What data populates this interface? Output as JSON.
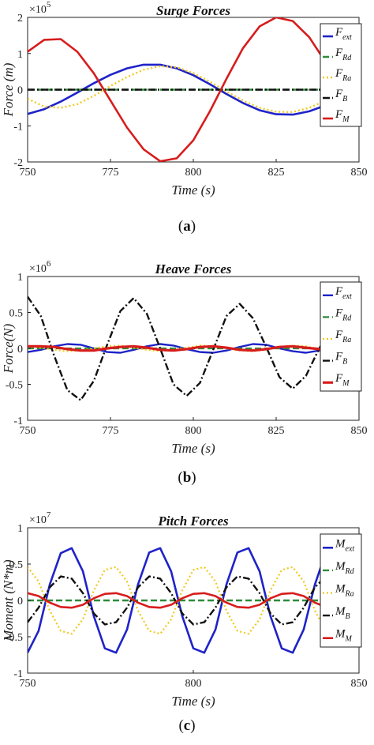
{
  "figure": {
    "captions": [
      {
        "open": "(",
        "letter": "a",
        "close": ")"
      },
      {
        "open": "(",
        "letter": "b",
        "close": ")"
      },
      {
        "open": "(",
        "letter": "c",
        "close": ")"
      }
    ]
  },
  "chart_data": [
    {
      "type": "line",
      "title": "Surge Forces",
      "xlabel": "Time (s)",
      "ylabel": "Force (m)",
      "exponent": {
        "base": "×10",
        "power": "5"
      },
      "xlim": [
        750,
        850
      ],
      "ylim": [
        -2,
        2
      ],
      "xticks": [
        "750",
        "775",
        "800",
        "825",
        "850"
      ],
      "yticks": [
        "2",
        "1",
        "0",
        "-1",
        "-2"
      ],
      "grid": false,
      "legend_position": "right",
      "x": [
        750,
        755,
        760,
        765,
        770,
        775,
        780,
        785,
        790,
        795,
        800,
        805,
        810,
        815,
        820,
        825,
        830,
        835,
        840,
        845,
        850
      ],
      "series": [
        {
          "name": "ext",
          "symbol": "F",
          "sub": "ext",
          "color": "#1f23c8",
          "dash": "solid",
          "width": 2.6,
          "values": [
            -0.67,
            -0.54,
            -0.33,
            -0.08,
            0.18,
            0.41,
            0.59,
            0.69,
            0.69,
            0.59,
            0.4,
            0.15,
            -0.12,
            -0.37,
            -0.57,
            -0.68,
            -0.69,
            -0.6,
            -0.43,
            -0.19,
            0.06
          ]
        },
        {
          "name": "Rd",
          "symbol": "F",
          "sub": "Rd",
          "color": "#2e8b3a",
          "dash": "8,4",
          "width": 2.4,
          "values": [
            0,
            0,
            0,
            0,
            0,
            0,
            0,
            0,
            0,
            0,
            0,
            0,
            0,
            0,
            0,
            0,
            0,
            0,
            0,
            0,
            0
          ]
        },
        {
          "name": "Ra",
          "symbol": "F",
          "sub": "Ra",
          "color": "#f2c81e",
          "dash": "2,3",
          "width": 2.4,
          "values": [
            -0.25,
            -0.47,
            -0.5,
            -0.4,
            -0.17,
            0.1,
            0.35,
            0.55,
            0.65,
            0.62,
            0.46,
            0.22,
            -0.05,
            -0.3,
            -0.5,
            -0.61,
            -0.62,
            -0.5,
            -0.3,
            -0.05,
            0.2
          ]
        },
        {
          "name": "B",
          "symbol": "F",
          "sub": "B",
          "color": "#111111",
          "dash": "9,3,2,3",
          "width": 2.4,
          "values": [
            0,
            0,
            0,
            0,
            0,
            0,
            0,
            0,
            0,
            0,
            0,
            0,
            0,
            0,
            0,
            0,
            0,
            0,
            0,
            0,
            0
          ]
        },
        {
          "name": "M",
          "symbol": "F",
          "sub": "M",
          "color": "#d81c1c",
          "dash": "solid",
          "width": 2.6,
          "values": [
            1.05,
            1.38,
            1.4,
            1.05,
            0.45,
            -0.3,
            -1.05,
            -1.65,
            -1.98,
            -1.9,
            -1.4,
            -0.6,
            0.3,
            1.15,
            1.75,
            2.0,
            1.9,
            1.45,
            0.75,
            -0.05,
            -0.8
          ]
        }
      ]
    },
    {
      "type": "line",
      "title": "Heave Forces",
      "xlabel": "Time (s)",
      "ylabel": "Force(N)",
      "exponent": {
        "base": "×10",
        "power": "6"
      },
      "xlim": [
        750,
        850
      ],
      "ylim": [
        -1,
        1
      ],
      "xticks": [
        "750",
        "775",
        "800",
        "825",
        "850"
      ],
      "yticks": [
        "1",
        "0.5",
        "0",
        "-0.5",
        "-1"
      ],
      "grid": false,
      "legend_position": "right",
      "x": [
        750,
        754,
        758,
        762,
        766,
        770,
        774,
        778,
        782,
        786,
        790,
        794,
        798,
        802,
        806,
        810,
        814,
        818,
        822,
        826,
        830,
        834,
        838,
        842,
        846,
        850
      ],
      "series": [
        {
          "name": "ext",
          "symbol": "F",
          "sub": "ext",
          "color": "#1f23c8",
          "dash": "solid",
          "width": 2.4,
          "values": [
            -0.05,
            -0.02,
            0.03,
            0.06,
            0.05,
            0.0,
            -0.05,
            -0.06,
            -0.02,
            0.03,
            0.06,
            0.04,
            -0.01,
            -0.05,
            -0.06,
            -0.03,
            0.02,
            0.06,
            0.05,
            0.0,
            -0.04,
            -0.06,
            -0.03,
            0.02,
            0.05,
            0.04
          ]
        },
        {
          "name": "Rd",
          "symbol": "F",
          "sub": "Rd",
          "color": "#2e8b3a",
          "dash": "8,4",
          "width": 2.2,
          "values": [
            0,
            0,
            0,
            0,
            0,
            0,
            0,
            0,
            0,
            0,
            0,
            0,
            0,
            0,
            0,
            0,
            0,
            0,
            0,
            0,
            0,
            0,
            0,
            0,
            0,
            0
          ]
        },
        {
          "name": "Ra",
          "symbol": "F",
          "sub": "Ra",
          "color": "#f2c81e",
          "dash": "2,3",
          "width": 2.2,
          "values": [
            0.03,
            0.01,
            -0.02,
            -0.04,
            -0.03,
            0.0,
            0.03,
            0.04,
            0.01,
            -0.02,
            -0.04,
            -0.02,
            0.01,
            0.04,
            0.03,
            0.0,
            -0.03,
            -0.04,
            -0.02,
            0.02,
            0.04,
            0.03,
            -0.01,
            -0.03,
            -0.03,
            0.0
          ]
        },
        {
          "name": "B",
          "symbol": "F",
          "sub": "B",
          "color": "#111111",
          "dash": "9,3,2,3",
          "width": 2.4,
          "values": [
            0.72,
            0.45,
            -0.1,
            -0.58,
            -0.72,
            -0.45,
            0.05,
            0.52,
            0.7,
            0.48,
            0.0,
            -0.5,
            -0.66,
            -0.48,
            -0.02,
            0.45,
            0.62,
            0.42,
            0.02,
            -0.4,
            -0.56,
            -0.38,
            0.0,
            0.3,
            0.33,
            0.28
          ]
        },
        {
          "name": "M",
          "symbol": "F",
          "sub": "M",
          "color": "#d81c1c",
          "dash": "solid",
          "width": 3.2,
          "values": [
            0.03,
            0.03,
            0.02,
            -0.01,
            -0.03,
            -0.03,
            0.0,
            0.02,
            0.03,
            0.01,
            -0.02,
            -0.03,
            -0.01,
            0.02,
            0.03,
            0.01,
            -0.02,
            -0.03,
            -0.01,
            0.02,
            0.03,
            0.01,
            -0.01,
            -0.02,
            0.0,
            0.02
          ]
        }
      ]
    },
    {
      "type": "line",
      "title": "Pitch Forces",
      "xlabel": "Time (s)",
      "ylabel": "Moment (N*m)",
      "exponent": {
        "base": "×10",
        "power": "7"
      },
      "xlim": [
        750,
        850
      ],
      "ylim": [
        -1,
        1
      ],
      "xticks": [
        "750",
        "800",
        "850"
      ],
      "yticks": [
        "1",
        "0.5",
        "0",
        "-0.5",
        "-1"
      ],
      "grid": false,
      "legend_position": "right",
      "x": [
        750.0,
        753.3,
        756.7,
        760.0,
        763.3,
        766.7,
        770.0,
        773.3,
        776.7,
        780.0,
        783.3,
        786.7,
        790.0,
        793.3,
        796.7,
        800.0,
        803.3,
        806.7,
        810.0,
        813.3,
        816.7,
        820.0,
        823.3,
        826.7,
        830.0,
        833.3,
        836.7,
        840.0
      ],
      "series": [
        {
          "name": "ext",
          "symbol": "M",
          "sub": "ext",
          "color": "#1f23c8",
          "dash": "solid",
          "width": 2.6,
          "values": [
            -0.72,
            -0.42,
            0.22,
            0.65,
            0.72,
            0.4,
            -0.22,
            -0.66,
            -0.72,
            -0.4,
            0.22,
            0.66,
            0.72,
            0.4,
            -0.22,
            -0.66,
            -0.72,
            -0.4,
            0.22,
            0.66,
            0.72,
            0.4,
            -0.22,
            -0.66,
            -0.72,
            -0.4,
            0.22,
            0.66
          ]
        },
        {
          "name": "Rd",
          "symbol": "M",
          "sub": "Rd",
          "color": "#2e8b3a",
          "dash": "8,4",
          "width": 2.4,
          "values": [
            0,
            0,
            0,
            0,
            0,
            0,
            0,
            0,
            0,
            0,
            0,
            0,
            0,
            0,
            0,
            0,
            0,
            0,
            0,
            0,
            0,
            0,
            0,
            0,
            0,
            0,
            0,
            0
          ]
        },
        {
          "name": "Ra",
          "symbol": "M",
          "sub": "Ra",
          "color": "#f2c81e",
          "dash": "2,3",
          "width": 2.2,
          "values": [
            0.46,
            0.26,
            -0.14,
            -0.42,
            -0.46,
            -0.26,
            0.14,
            0.42,
            0.46,
            0.26,
            -0.14,
            -0.42,
            -0.46,
            -0.26,
            0.14,
            0.42,
            0.46,
            0.26,
            -0.14,
            -0.42,
            -0.46,
            -0.26,
            0.14,
            0.42,
            0.46,
            0.26,
            -0.14,
            -0.42
          ]
        },
        {
          "name": "B",
          "symbol": "M",
          "sub": "B",
          "color": "#111111",
          "dash": "9,3,2,3",
          "width": 2.4,
          "values": [
            -0.3,
            -0.1,
            0.18,
            0.33,
            0.3,
            0.1,
            -0.18,
            -0.33,
            -0.3,
            -0.1,
            0.18,
            0.33,
            0.3,
            0.1,
            -0.18,
            -0.33,
            -0.3,
            -0.1,
            0.18,
            0.33,
            0.3,
            0.1,
            -0.18,
            -0.33,
            -0.3,
            -0.1,
            0.18,
            0.33
          ]
        },
        {
          "name": "M",
          "symbol": "M",
          "sub": "M",
          "color": "#d81c1c",
          "dash": "solid",
          "width": 2.6,
          "values": [
            0.1,
            0.06,
            -0.03,
            -0.09,
            -0.1,
            -0.06,
            0.03,
            0.09,
            0.1,
            0.06,
            -0.03,
            -0.09,
            -0.1,
            -0.06,
            0.03,
            0.09,
            0.1,
            0.06,
            -0.03,
            -0.09,
            -0.1,
            -0.06,
            0.03,
            0.09,
            0.1,
            0.06,
            -0.03,
            -0.09
          ]
        }
      ]
    }
  ]
}
